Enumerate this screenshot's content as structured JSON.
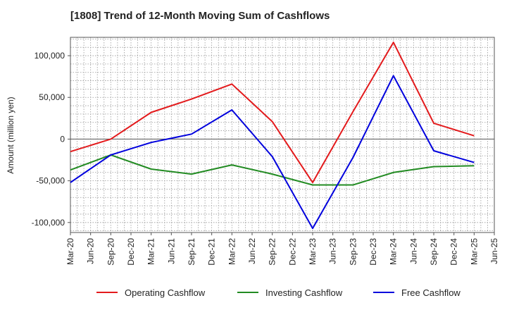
{
  "chart_data": {
    "type": "line",
    "title": "[1808]  Trend of 12-Month Moving Sum of Cashflows",
    "xlabel": "",
    "ylabel": "Amount (million yen)",
    "x_ticks": [
      "Mar-20",
      "Jun-20",
      "Sep-20",
      "Dec-20",
      "Mar-21",
      "Jun-21",
      "Sep-21",
      "Dec-21",
      "Mar-22",
      "Jun-22",
      "Sep-22",
      "Dec-22",
      "Mar-23",
      "Jun-23",
      "Sep-23",
      "Dec-23",
      "Mar-24",
      "Jun-24",
      "Sep-24",
      "Dec-24",
      "Mar-25",
      "Jun-25"
    ],
    "y_ticks": [
      100000,
      50000,
      0,
      -50000,
      -100000
    ],
    "y_tick_labels": [
      "100,000",
      "50,000",
      "0",
      "-50,000",
      "-100,000"
    ],
    "ylim": [
      -112000,
      122000
    ],
    "grid": true,
    "legend_position": "bottom",
    "series": [
      {
        "name": "Operating Cashflow",
        "color": "#e31a1c",
        "x": [
          "Mar-20",
          "Sep-20",
          "Mar-21",
          "Sep-21",
          "Mar-22",
          "Sep-22",
          "Mar-23",
          "Sep-23",
          "Mar-24",
          "Sep-24",
          "Mar-25"
        ],
        "values": [
          -15000,
          0,
          32000,
          48000,
          66000,
          21000,
          -52000,
          33000,
          116000,
          19000,
          4000
        ]
      },
      {
        "name": "Investing Cashflow",
        "color": "#228b22",
        "x": [
          "Mar-20",
          "Sep-20",
          "Mar-21",
          "Sep-21",
          "Mar-22",
          "Sep-22",
          "Mar-23",
          "Sep-23",
          "Mar-24",
          "Sep-24",
          "Mar-25"
        ],
        "values": [
          -37000,
          -19000,
          -36000,
          -42000,
          -31000,
          -42000,
          -55000,
          -55000,
          -40000,
          -33000,
          -32000
        ]
      },
      {
        "name": "Free Cashflow",
        "color": "#0000dd",
        "x": [
          "Mar-20",
          "Sep-20",
          "Mar-21",
          "Sep-21",
          "Mar-22",
          "Sep-22",
          "Mar-23",
          "Sep-23",
          "Mar-24",
          "Sep-24",
          "Mar-25"
        ],
        "values": [
          -52000,
          -19000,
          -4000,
          6000,
          35000,
          -21000,
          -107000,
          -22000,
          76000,
          -14000,
          -28000
        ]
      }
    ]
  }
}
